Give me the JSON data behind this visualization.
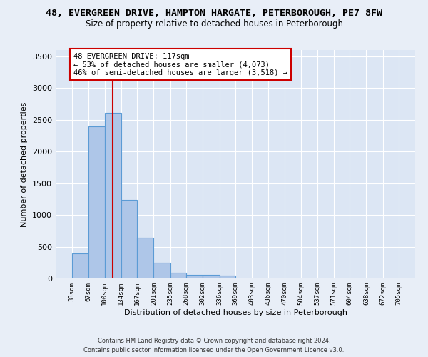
{
  "title_line1": "48, EVERGREEN DRIVE, HAMPTON HARGATE, PETERBOROUGH, PE7 8FW",
  "title_line2": "Size of property relative to detached houses in Peterborough",
  "xlabel": "Distribution of detached houses by size in Peterborough",
  "ylabel": "Number of detached properties",
  "footer_line1": "Contains HM Land Registry data © Crown copyright and database right 2024.",
  "footer_line2": "Contains public sector information licensed under the Open Government Licence v3.0.",
  "annotation_line1": "48 EVERGREEN DRIVE: 117sqm",
  "annotation_line2": "← 53% of detached houses are smaller (4,073)",
  "annotation_line3": "46% of semi-detached houses are larger (3,518) →",
  "property_size": 117,
  "bin_edges": [
    33,
    67,
    100,
    134,
    167,
    201,
    235,
    268,
    302,
    336,
    369,
    403,
    436,
    470,
    504,
    537,
    571,
    604,
    638,
    672,
    705
  ],
  "bar_heights": [
    390,
    2400,
    2610,
    1240,
    640,
    250,
    90,
    60,
    55,
    45,
    0,
    0,
    0,
    0,
    0,
    0,
    0,
    0,
    0,
    0
  ],
  "bar_color": "#aec6e8",
  "bar_edge_color": "#5b9bd5",
  "vline_color": "#cc0000",
  "vline_x": 117,
  "annotation_box_color": "#ffffff",
  "annotation_box_edge_color": "#cc0000",
  "ylim": [
    0,
    3600
  ],
  "yticks": [
    0,
    500,
    1000,
    1500,
    2000,
    2500,
    3000,
    3500
  ],
  "bg_color": "#e8eef7",
  "plot_bg_color": "#dce6f4",
  "grid_color": "#ffffff",
  "title1_fontsize": 9.5,
  "title2_fontsize": 8.5,
  "xlabel_fontsize": 8,
  "ylabel_fontsize": 8
}
